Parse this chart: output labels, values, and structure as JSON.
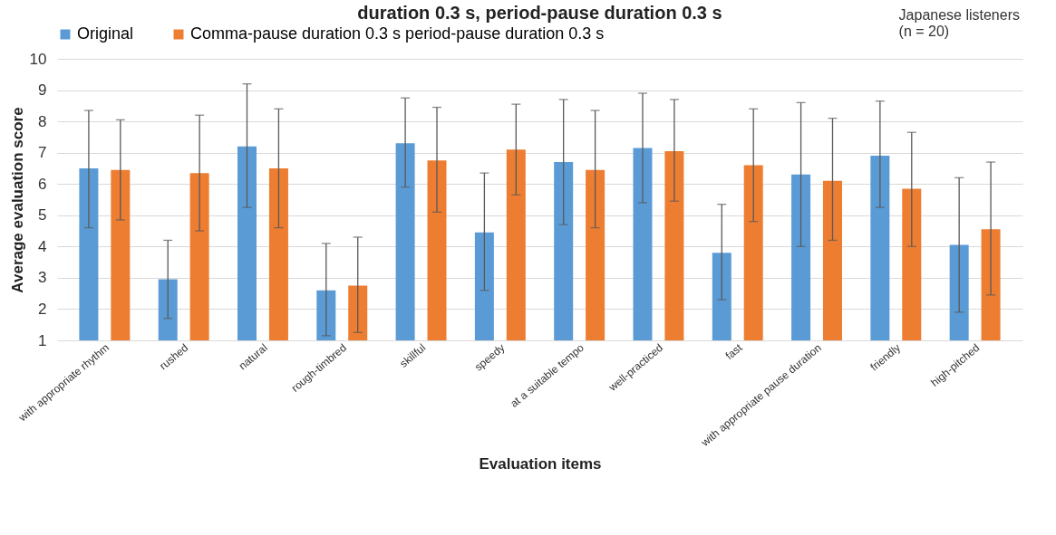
{
  "chart_data": {
    "type": "bar",
    "title": "duration 0.3 s, period-pause duration 0.3 s",
    "xlabel": "Evaluation items",
    "ylabel": "Average evaluation score",
    "annotations": [
      "Japanese listeners\n(n = 20)"
    ],
    "categories": [
      "with appropriate rhythm",
      "rushed",
      "natural",
      "rough-timbred",
      "skillful",
      "speedy",
      "at a suitable tempo",
      "well-practiced",
      "fast",
      "with appropriate pause duration",
      "friendly",
      "high-pitched"
    ],
    "series": [
      {
        "name": "Original",
        "color": "#5b9bd5",
        "values": [
          6.5,
          2.95,
          7.2,
          2.6,
          7.3,
          4.45,
          6.7,
          7.15,
          3.8,
          6.3,
          6.9,
          4.05
        ],
        "errors": [
          [
            4.6,
            8.35
          ],
          [
            1.7,
            4.2
          ],
          [
            5.25,
            9.2
          ],
          [
            1.15,
            4.1
          ],
          [
            5.9,
            8.75
          ],
          [
            2.6,
            6.35
          ],
          [
            4.7,
            8.7
          ],
          [
            5.4,
            8.9
          ],
          [
            2.3,
            5.35
          ],
          [
            4.0,
            8.6
          ],
          [
            5.25,
            8.65
          ],
          [
            1.9,
            6.2
          ]
        ]
      },
      {
        "name": "Comma-pause duration 0.3 s period-pause duration 0.3 s",
        "color": "#ed7d31",
        "values": [
          6.45,
          6.35,
          6.5,
          2.75,
          6.75,
          7.1,
          6.45,
          7.05,
          6.6,
          6.1,
          5.85,
          4.55
        ],
        "errors": [
          [
            4.85,
            8.05
          ],
          [
            4.5,
            8.2
          ],
          [
            4.6,
            8.4
          ],
          [
            1.25,
            4.3
          ],
          [
            5.1,
            8.45
          ],
          [
            5.65,
            8.55
          ],
          [
            4.6,
            8.35
          ],
          [
            5.45,
            8.7
          ],
          [
            4.8,
            8.4
          ],
          [
            4.2,
            8.1
          ],
          [
            4.0,
            7.65
          ],
          [
            2.45,
            6.7
          ]
        ]
      }
    ],
    "ylim": [
      1,
      10
    ],
    "yticks": [
      1,
      2,
      3,
      4,
      5,
      6,
      7,
      8,
      9,
      10
    ],
    "grid": "y",
    "legend": "top"
  }
}
